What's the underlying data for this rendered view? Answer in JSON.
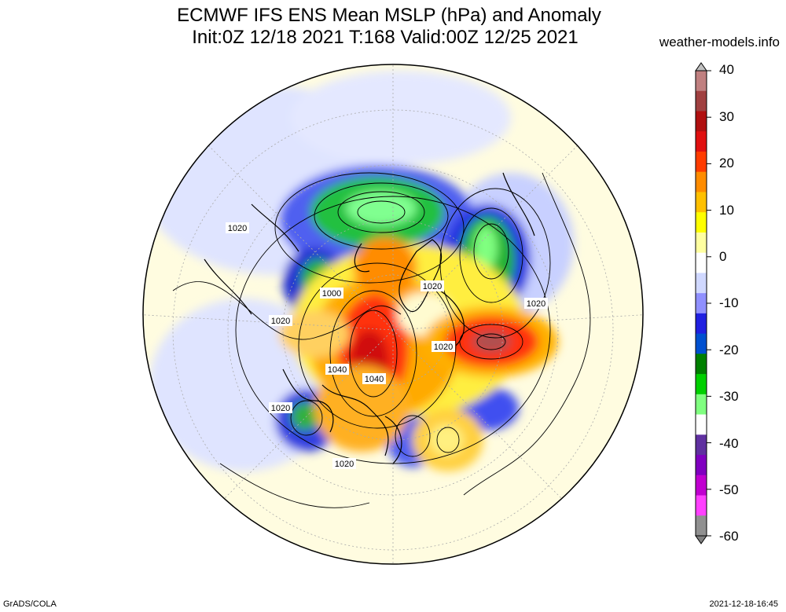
{
  "title": {
    "line1": "ECMWF IFS ENS Mean MSLP (hPa) and Anomaly",
    "line2": "Init:0Z 12/18 2021  T:168 Valid:00Z 12/25 2021"
  },
  "site": "weather-models.info",
  "footer": {
    "left": "GrADS/COLA",
    "right": "2021-12-18-16:45"
  },
  "colorbar": {
    "ticks": [
      "40",
      "30",
      "20",
      "10",
      "0",
      "-10",
      "-20",
      "-30",
      "-40",
      "-50",
      "-60"
    ],
    "colors": [
      "#c08080",
      "#a04040",
      "#b01010",
      "#e01010",
      "#ff3c00",
      "#ff8c00",
      "#ffc000",
      "#ffff00",
      "#ffffa0",
      "#ffffff",
      "#d0d8ff",
      "#9090ff",
      "#2020e0",
      "#0050d0",
      "#008000",
      "#00d000",
      "#80ff80",
      "#ffffff",
      "#6030a0",
      "#8000c0",
      "#c000d0",
      "#ff40ff",
      "#909090"
    ]
  },
  "contour_labels": [
    "1020",
    "1000",
    "1020",
    "1020",
    "1020",
    "1020",
    "1040",
    "1040",
    "1020",
    "1020"
  ]
}
